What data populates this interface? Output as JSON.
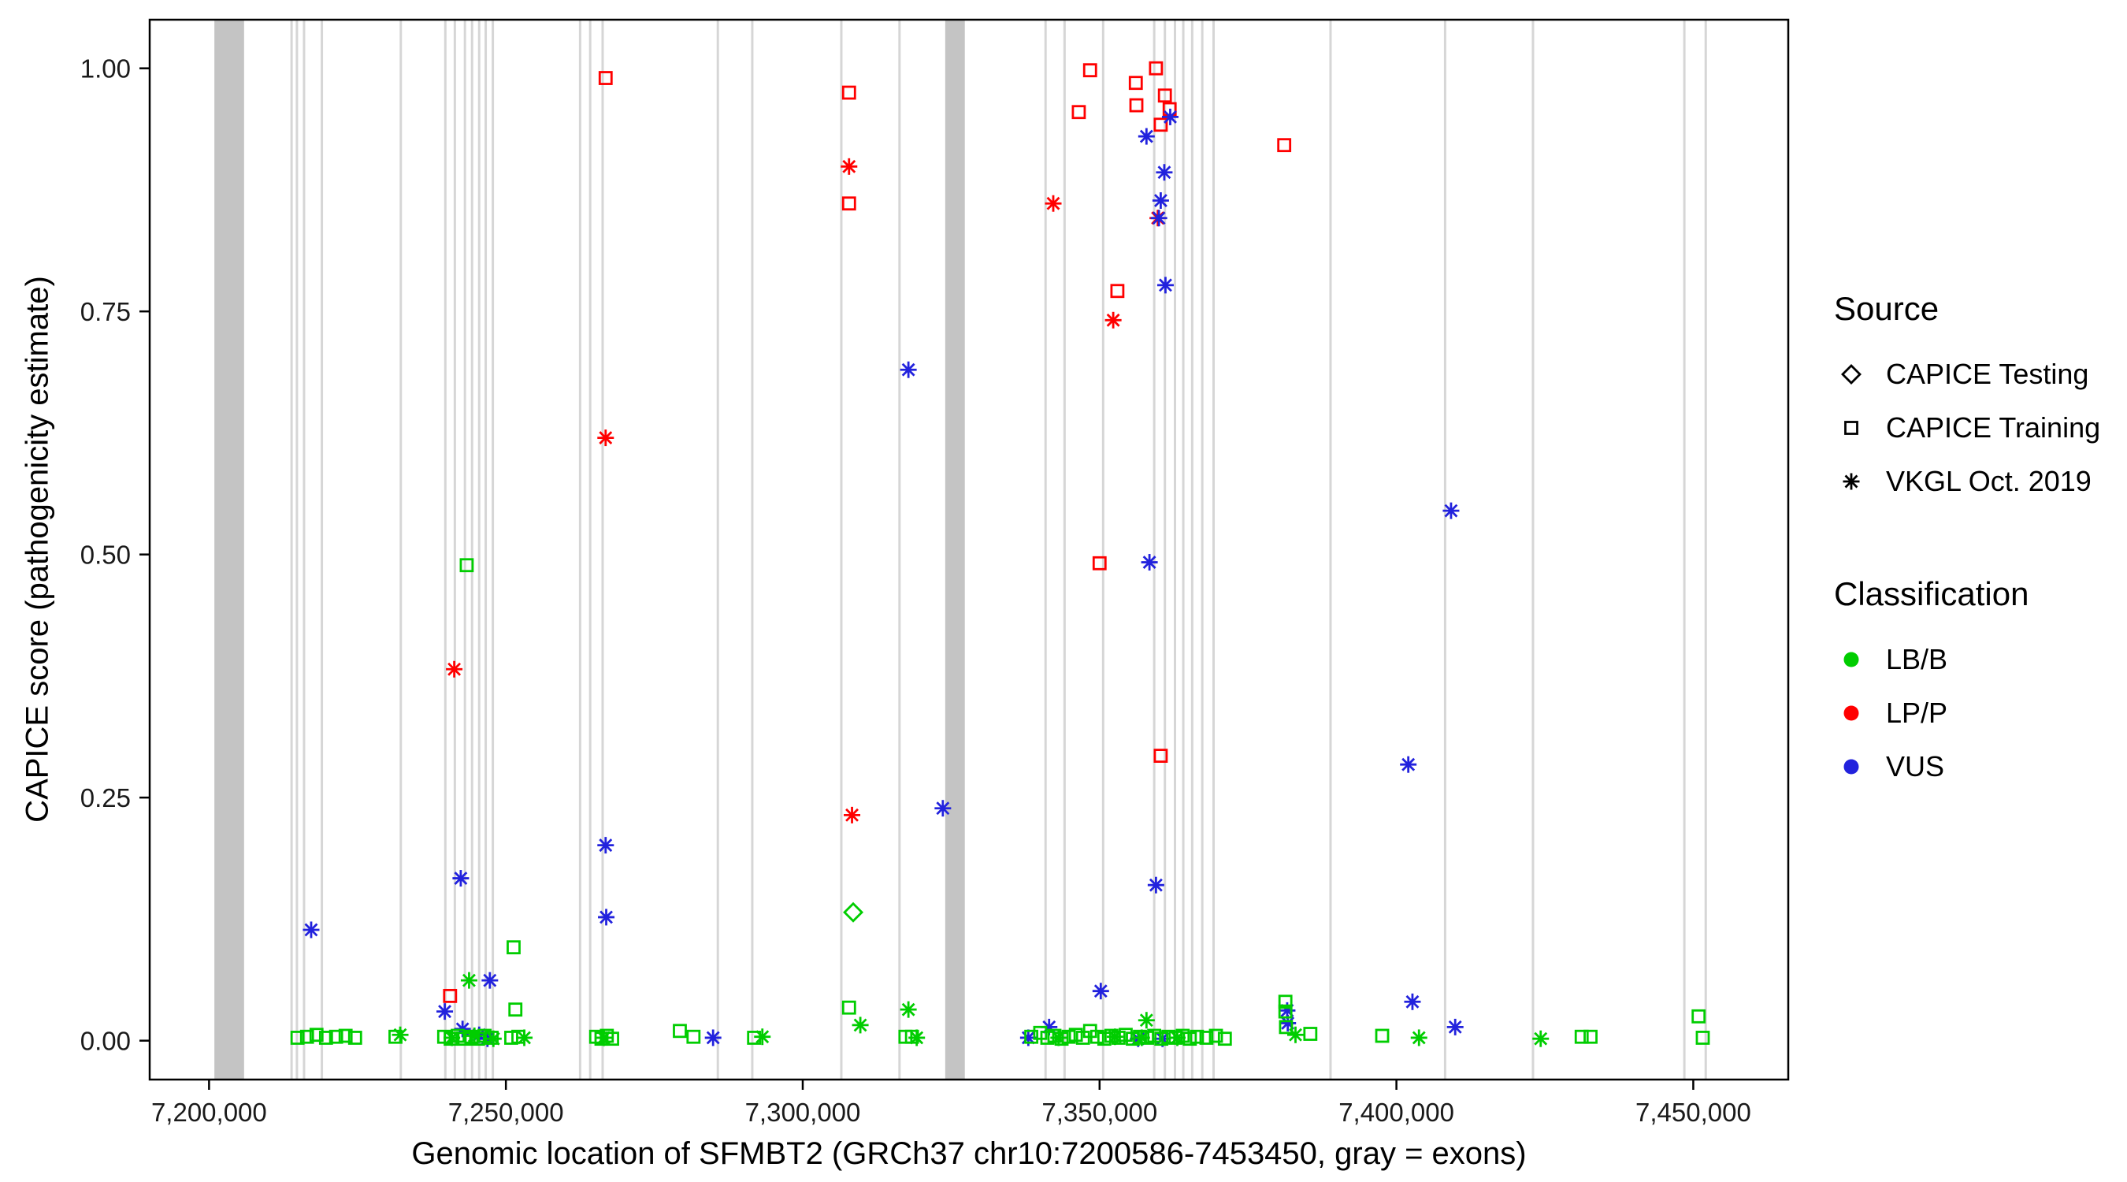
{
  "legend": {
    "source_title": "Source",
    "source_items": [
      {
        "label": "CAPICE Testing",
        "shape": "diamond"
      },
      {
        "label": "CAPICE Training",
        "shape": "square"
      },
      {
        "label": "VKGL Oct. 2019",
        "shape": "asterisk"
      }
    ],
    "classification_title": "Classification",
    "classification_items": [
      {
        "label": "LB/B",
        "color": "#00CD00"
      },
      {
        "label": "LP/P",
        "color": "#FF0000"
      },
      {
        "label": "VUS",
        "color": "#2222DD"
      }
    ]
  },
  "chart_data": {
    "type": "scatter",
    "title": "",
    "xlabel": "Genomic location of SFMBT2 (GRCh37 chr10:7200586-7453450, gray = exons)",
    "ylabel": "CAPICE score (pathogenicity estimate)",
    "xlim": [
      7190000,
      7466000
    ],
    "ylim": [
      -0.04,
      1.05
    ],
    "x_ticks": [
      7200000,
      7250000,
      7300000,
      7350000,
      7400000,
      7450000
    ],
    "x_tick_labels": [
      "7,200,000",
      "7,250,000",
      "7,300,000",
      "7,350,000",
      "7,400,000",
      "7,450,000"
    ],
    "y_ticks": [
      0,
      0.25,
      0.5,
      0.75,
      1.0
    ],
    "y_tick_labels": [
      "0.00",
      "0.25",
      "0.50",
      "0.75",
      "1.00"
    ],
    "grid": false,
    "legend_position": "right",
    "exons": {
      "wide_color": "#C4C4C4",
      "thin_color": "#D6D6D6",
      "wide": [
        [
          7200900,
          7205900
        ],
        [
          7324000,
          7327300
        ]
      ],
      "thin": [
        7213900,
        7214800,
        7216000,
        7219000,
        7232300,
        7239800,
        7241400,
        7243100,
        7244300,
        7245500,
        7246600,
        7247800,
        7262500,
        7264200,
        7266300,
        7285700,
        7291500,
        7306500,
        7316300,
        7340900,
        7344100,
        7350600,
        7359200,
        7361000,
        7362700,
        7364100,
        7365600,
        7367300,
        7369200,
        7388900,
        7408200,
        7423000,
        7448500,
        7452100
      ]
    },
    "source_codes": {
      "te": "CAPICE Testing",
      "tr": "CAPICE Training",
      "vk": "VKGL Oct. 2019"
    },
    "class_codes": {
      "b": "LB/B",
      "p": "LP/P",
      "v": "VUS"
    },
    "shapes": {
      "te": "diamond",
      "tr": "square",
      "vk": "asterisk"
    },
    "colors": {
      "b": "#00CD00",
      "p": "#FF0000",
      "v": "#2222DD"
    },
    "point_format": [
      "x",
      "y",
      "source",
      "classification"
    ],
    "points": [
      [
        7266800,
        0.99,
        "tr",
        "p"
      ],
      [
        7307800,
        0.975,
        "tr",
        "p"
      ],
      [
        7307800,
        0.861,
        "tr",
        "p"
      ],
      [
        7348400,
        0.998,
        "tr",
        "p"
      ],
      [
        7346500,
        0.955,
        "tr",
        "p"
      ],
      [
        7356100,
        0.985,
        "tr",
        "p"
      ],
      [
        7356200,
        0.962,
        "tr",
        "p"
      ],
      [
        7359500,
        1.0,
        "tr",
        "p"
      ],
      [
        7361000,
        0.972,
        "tr",
        "p"
      ],
      [
        7361800,
        0.958,
        "tr",
        "p"
      ],
      [
        7360300,
        0.942,
        "tr",
        "p"
      ],
      [
        7353000,
        0.771,
        "tr",
        "p"
      ],
      [
        7350000,
        0.491,
        "tr",
        "p"
      ],
      [
        7360300,
        0.293,
        "tr",
        "p"
      ],
      [
        7381100,
        0.921,
        "tr",
        "p"
      ],
      [
        7240600,
        0.046,
        "tr",
        "p"
      ],
      [
        7307800,
        0.899,
        "vk",
        "p"
      ],
      [
        7266800,
        0.62,
        "vk",
        "p"
      ],
      [
        7241300,
        0.382,
        "vk",
        "p"
      ],
      [
        7308300,
        0.232,
        "vk",
        "p"
      ],
      [
        7342200,
        0.861,
        "vk",
        "p"
      ],
      [
        7352300,
        0.741,
        "vk",
        "p"
      ],
      [
        7359800,
        0.846,
        "vk",
        "p"
      ],
      [
        7217200,
        0.114,
        "vk",
        "v"
      ],
      [
        7242400,
        0.167,
        "vk",
        "v"
      ],
      [
        7239700,
        0.03,
        "vk",
        "v"
      ],
      [
        7242700,
        0.012,
        "vk",
        "v"
      ],
      [
        7247300,
        0.062,
        "vk",
        "v"
      ],
      [
        7266800,
        0.201,
        "vk",
        "v"
      ],
      [
        7266900,
        0.127,
        "vk",
        "v"
      ],
      [
        7317800,
        0.69,
        "vk",
        "v"
      ],
      [
        7323600,
        0.239,
        "vk",
        "v"
      ],
      [
        7357900,
        0.93,
        "vk",
        "v"
      ],
      [
        7360900,
        0.893,
        "vk",
        "v"
      ],
      [
        7361900,
        0.95,
        "vk",
        "v"
      ],
      [
        7360300,
        0.864,
        "vk",
        "v"
      ],
      [
        7360000,
        0.846,
        "vk",
        "v"
      ],
      [
        7361100,
        0.777,
        "vk",
        "v"
      ],
      [
        7358400,
        0.492,
        "vk",
        "v"
      ],
      [
        7359500,
        0.16,
        "vk",
        "v"
      ],
      [
        7350200,
        0.051,
        "vk",
        "v"
      ],
      [
        7341500,
        0.014,
        "vk",
        "v"
      ],
      [
        7338000,
        0.003,
        "vk",
        "v"
      ],
      [
        7409200,
        0.545,
        "vk",
        "v"
      ],
      [
        7402000,
        0.284,
        "vk",
        "v"
      ],
      [
        7402700,
        0.04,
        "vk",
        "v"
      ],
      [
        7409900,
        0.014,
        "vk",
        "v"
      ],
      [
        7381600,
        0.031,
        "vk",
        "v"
      ],
      [
        7381700,
        0.018,
        "vk",
        "v"
      ],
      [
        7284900,
        0.003,
        "vk",
        "v"
      ],
      [
        7356500,
        0.002,
        "vk",
        "v"
      ],
      [
        7360600,
        0.002,
        "vk",
        "v"
      ],
      [
        7245500,
        0.006,
        "vk",
        "v"
      ],
      [
        7246900,
        0.002,
        "vk",
        "v"
      ],
      [
        7308500,
        0.132,
        "te",
        "b"
      ],
      [
        7243400,
        0.489,
        "tr",
        "b"
      ],
      [
        7251300,
        0.096,
        "tr",
        "b"
      ],
      [
        7251600,
        0.032,
        "tr",
        "b"
      ],
      [
        7214900,
        0.003,
        "tr",
        "b"
      ],
      [
        7216500,
        0.004,
        "tr",
        "b"
      ],
      [
        7218100,
        0.006,
        "tr",
        "b"
      ],
      [
        7219700,
        0.003,
        "tr",
        "b"
      ],
      [
        7221400,
        0.004,
        "tr",
        "b"
      ],
      [
        7223000,
        0.005,
        "tr",
        "b"
      ],
      [
        7224600,
        0.003,
        "tr",
        "b"
      ],
      [
        7231400,
        0.004,
        "tr",
        "b"
      ],
      [
        7239600,
        0.004,
        "tr",
        "b"
      ],
      [
        7240700,
        0.002,
        "tr",
        "b"
      ],
      [
        7241900,
        0.005,
        "tr",
        "b"
      ],
      [
        7243000,
        0.002,
        "tr",
        "b"
      ],
      [
        7244200,
        0.004,
        "tr",
        "b"
      ],
      [
        7245300,
        0.002,
        "tr",
        "b"
      ],
      [
        7246400,
        0.005,
        "tr",
        "b"
      ],
      [
        7247600,
        0.003,
        "tr",
        "b"
      ],
      [
        7250900,
        0.003,
        "tr",
        "b"
      ],
      [
        7252100,
        0.004,
        "tr",
        "b"
      ],
      [
        7265200,
        0.004,
        "tr",
        "b"
      ],
      [
        7266100,
        0.002,
        "tr",
        "b"
      ],
      [
        7267000,
        0.005,
        "tr",
        "b"
      ],
      [
        7267900,
        0.002,
        "tr",
        "b"
      ],
      [
        7279300,
        0.01,
        "tr",
        "b"
      ],
      [
        7281600,
        0.004,
        "tr",
        "b"
      ],
      [
        7291800,
        0.003,
        "tr",
        "b"
      ],
      [
        7307800,
        0.034,
        "tr",
        "b"
      ],
      [
        7317300,
        0.004,
        "tr",
        "b"
      ],
      [
        7318400,
        0.004,
        "tr",
        "b"
      ],
      [
        7338500,
        0.004,
        "tr",
        "b"
      ],
      [
        7340000,
        0.008,
        "tr",
        "b"
      ],
      [
        7341200,
        0.003,
        "tr",
        "b"
      ],
      [
        7342400,
        0.005,
        "tr",
        "b"
      ],
      [
        7343600,
        0.002,
        "tr",
        "b"
      ],
      [
        7344800,
        0.004,
        "tr",
        "b"
      ],
      [
        7346000,
        0.006,
        "tr",
        "b"
      ],
      [
        7347200,
        0.003,
        "tr",
        "b"
      ],
      [
        7348400,
        0.01,
        "tr",
        "b"
      ],
      [
        7349600,
        0.004,
        "tr",
        "b"
      ],
      [
        7350800,
        0.002,
        "tr",
        "b"
      ],
      [
        7352000,
        0.005,
        "tr",
        "b"
      ],
      [
        7353200,
        0.003,
        "tr",
        "b"
      ],
      [
        7354400,
        0.006,
        "tr",
        "b"
      ],
      [
        7355600,
        0.002,
        "tr",
        "b"
      ],
      [
        7356800,
        0.004,
        "tr",
        "b"
      ],
      [
        7358000,
        0.003,
        "tr",
        "b"
      ],
      [
        7359200,
        0.005,
        "tr",
        "b"
      ],
      [
        7360400,
        0.002,
        "tr",
        "b"
      ],
      [
        7361600,
        0.004,
        "tr",
        "b"
      ],
      [
        7362800,
        0.003,
        "tr",
        "b"
      ],
      [
        7364000,
        0.005,
        "tr",
        "b"
      ],
      [
        7365200,
        0.002,
        "tr",
        "b"
      ],
      [
        7366400,
        0.004,
        "tr",
        "b"
      ],
      [
        7368000,
        0.003,
        "tr",
        "b"
      ],
      [
        7369600,
        0.005,
        "tr",
        "b"
      ],
      [
        7371100,
        0.002,
        "tr",
        "b"
      ],
      [
        7381300,
        0.04,
        "tr",
        "b"
      ],
      [
        7381300,
        0.03,
        "tr",
        "b"
      ],
      [
        7381400,
        0.014,
        "tr",
        "b"
      ],
      [
        7385500,
        0.007,
        "tr",
        "b"
      ],
      [
        7397600,
        0.005,
        "tr",
        "b"
      ],
      [
        7431200,
        0.004,
        "tr",
        "b"
      ],
      [
        7432700,
        0.004,
        "tr",
        "b"
      ],
      [
        7450900,
        0.025,
        "tr",
        "b"
      ],
      [
        7451600,
        0.003,
        "tr",
        "b"
      ],
      [
        7243800,
        0.062,
        "vk",
        "b"
      ],
      [
        7232200,
        0.006,
        "vk",
        "b"
      ],
      [
        7240900,
        0.003,
        "vk",
        "b"
      ],
      [
        7244700,
        0.005,
        "vk",
        "b"
      ],
      [
        7247900,
        0.002,
        "vk",
        "b"
      ],
      [
        7253100,
        0.003,
        "vk",
        "b"
      ],
      [
        7266500,
        0.003,
        "vk",
        "b"
      ],
      [
        7293200,
        0.004,
        "vk",
        "b"
      ],
      [
        7309700,
        0.016,
        "vk",
        "b"
      ],
      [
        7317800,
        0.032,
        "vk",
        "b"
      ],
      [
        7319200,
        0.003,
        "vk",
        "b"
      ],
      [
        7343100,
        0.003,
        "vk",
        "b"
      ],
      [
        7352600,
        0.004,
        "vk",
        "b"
      ],
      [
        7357900,
        0.021,
        "vk",
        "b"
      ],
      [
        7357100,
        0.003,
        "vk",
        "b"
      ],
      [
        7363100,
        0.003,
        "vk",
        "b"
      ],
      [
        7383000,
        0.006,
        "vk",
        "b"
      ],
      [
        7403800,
        0.003,
        "vk",
        "b"
      ],
      [
        7424300,
        0.002,
        "vk",
        "b"
      ]
    ]
  }
}
